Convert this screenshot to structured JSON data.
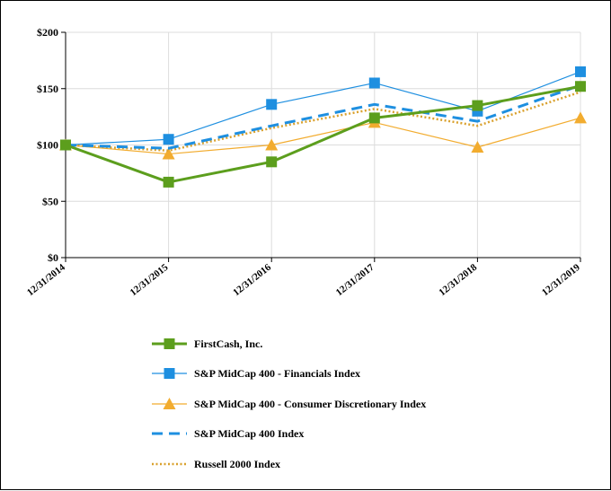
{
  "chart_data": {
    "type": "line",
    "title": "",
    "xlabel": "",
    "ylabel": "",
    "categories": [
      "12/31/2014",
      "12/31/2015",
      "12/31/2016",
      "12/31/2017",
      "12/31/2018",
      "12/31/2019"
    ],
    "y_ticks": [
      "$0",
      "$50",
      "$100",
      "$150",
      "$200"
    ],
    "ylim": [
      0,
      200
    ],
    "grid": "horizontal",
    "legend_position": "bottom",
    "series": [
      {
        "name": "FirstCash, Inc.",
        "values": [
          100,
          67,
          85,
          124,
          135,
          152
        ],
        "color": "#5c9e1d",
        "marker": "square",
        "style": "solid-thick"
      },
      {
        "name": "S&P MidCap 400 - Financials Index",
        "values": [
          100,
          105,
          136,
          155,
          130,
          165
        ],
        "color": "#1e8fe0",
        "marker": "square",
        "style": "solid"
      },
      {
        "name": "S&P MidCap 400 - Consumer Discretionary Index",
        "values": [
          100,
          92,
          100,
          120,
          98,
          124
        ],
        "color": "#f2ac2f",
        "marker": "triangle",
        "style": "solid"
      },
      {
        "name": "S&P MidCap 400 Index",
        "values": [
          100,
          97,
          117,
          136,
          121,
          153
        ],
        "color": "#1e8fe0",
        "marker": "none",
        "style": "dashed"
      },
      {
        "name": "Russell 2000 Index",
        "values": [
          100,
          95,
          115,
          132,
          117,
          147
        ],
        "color": "#d9a12e",
        "marker": "none",
        "style": "dotted"
      }
    ]
  }
}
